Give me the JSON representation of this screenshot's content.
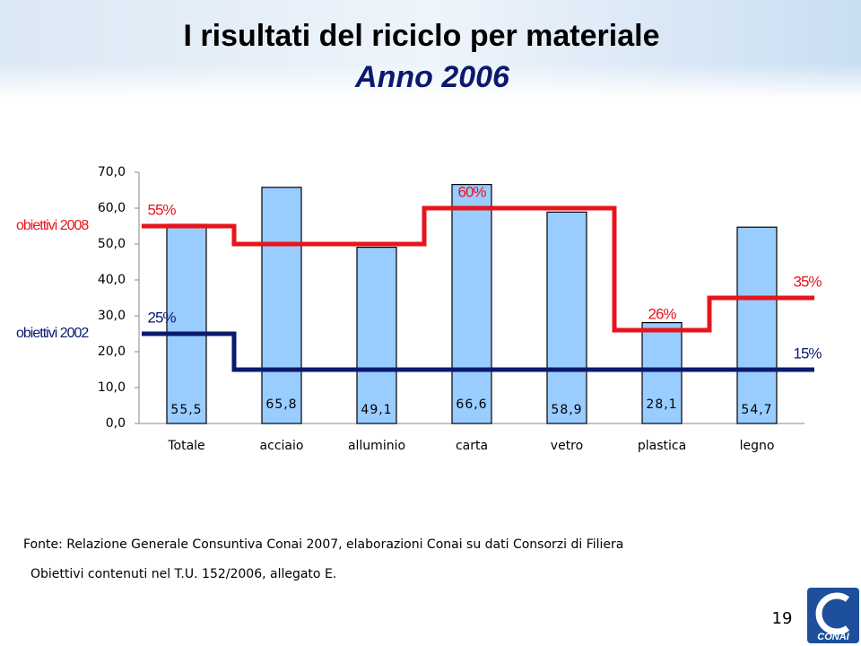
{
  "title": "I risultati del riciclo per materiale",
  "subtitle": "Anno 2006",
  "chart_data": {
    "type": "bar",
    "categories": [
      "Totale",
      "acciaio",
      "alluminio",
      "carta",
      "vetro",
      "plastica",
      "legno"
    ],
    "values": [
      55.5,
      65.8,
      49.1,
      66.6,
      58.9,
      28.1,
      54.7
    ],
    "value_labels": [
      "55,5",
      "65,8",
      "49,1",
      "66,6",
      "58,9",
      "28,1",
      "54,7"
    ],
    "color": "#99ccff",
    "series": [
      {
        "name": "obiettivi 2008",
        "type": "step",
        "color": "#e8141b",
        "values": [
          55,
          50,
          50,
          60,
          60,
          26,
          35
        ],
        "value_labels": [
          "55%",
          null,
          null,
          "60%",
          null,
          "26%",
          "35%"
        ]
      },
      {
        "name": "obiettivi 2002",
        "type": "step",
        "color": "#0a1a6e",
        "values": [
          25,
          15,
          15,
          15,
          15,
          15,
          15
        ],
        "value_labels": [
          "25%",
          null,
          null,
          null,
          null,
          null,
          "15%"
        ]
      }
    ],
    "ylim": [
      0,
      70
    ],
    "yticks": [
      {
        "value": 0,
        "label": "0,0"
      },
      {
        "value": 10,
        "label": "10,0"
      },
      {
        "value": 20,
        "label": "20,0"
      },
      {
        "value": 30,
        "label": "30,0"
      },
      {
        "value": 40,
        "label": "40,0"
      },
      {
        "value": 50,
        "label": "50,0"
      },
      {
        "value": 60,
        "label": "60,0"
      },
      {
        "value": 70,
        "label": "70,0"
      }
    ]
  },
  "footer": {
    "source": "Fonte: Relazione Generale Consuntiva Conai 2007, elaborazioni Conai su dati Consorzi di Filiera",
    "note": "Obiettivi contenuti nel T.U. 152/2006, allegato E.",
    "page": "19"
  },
  "logo": "CONAI"
}
